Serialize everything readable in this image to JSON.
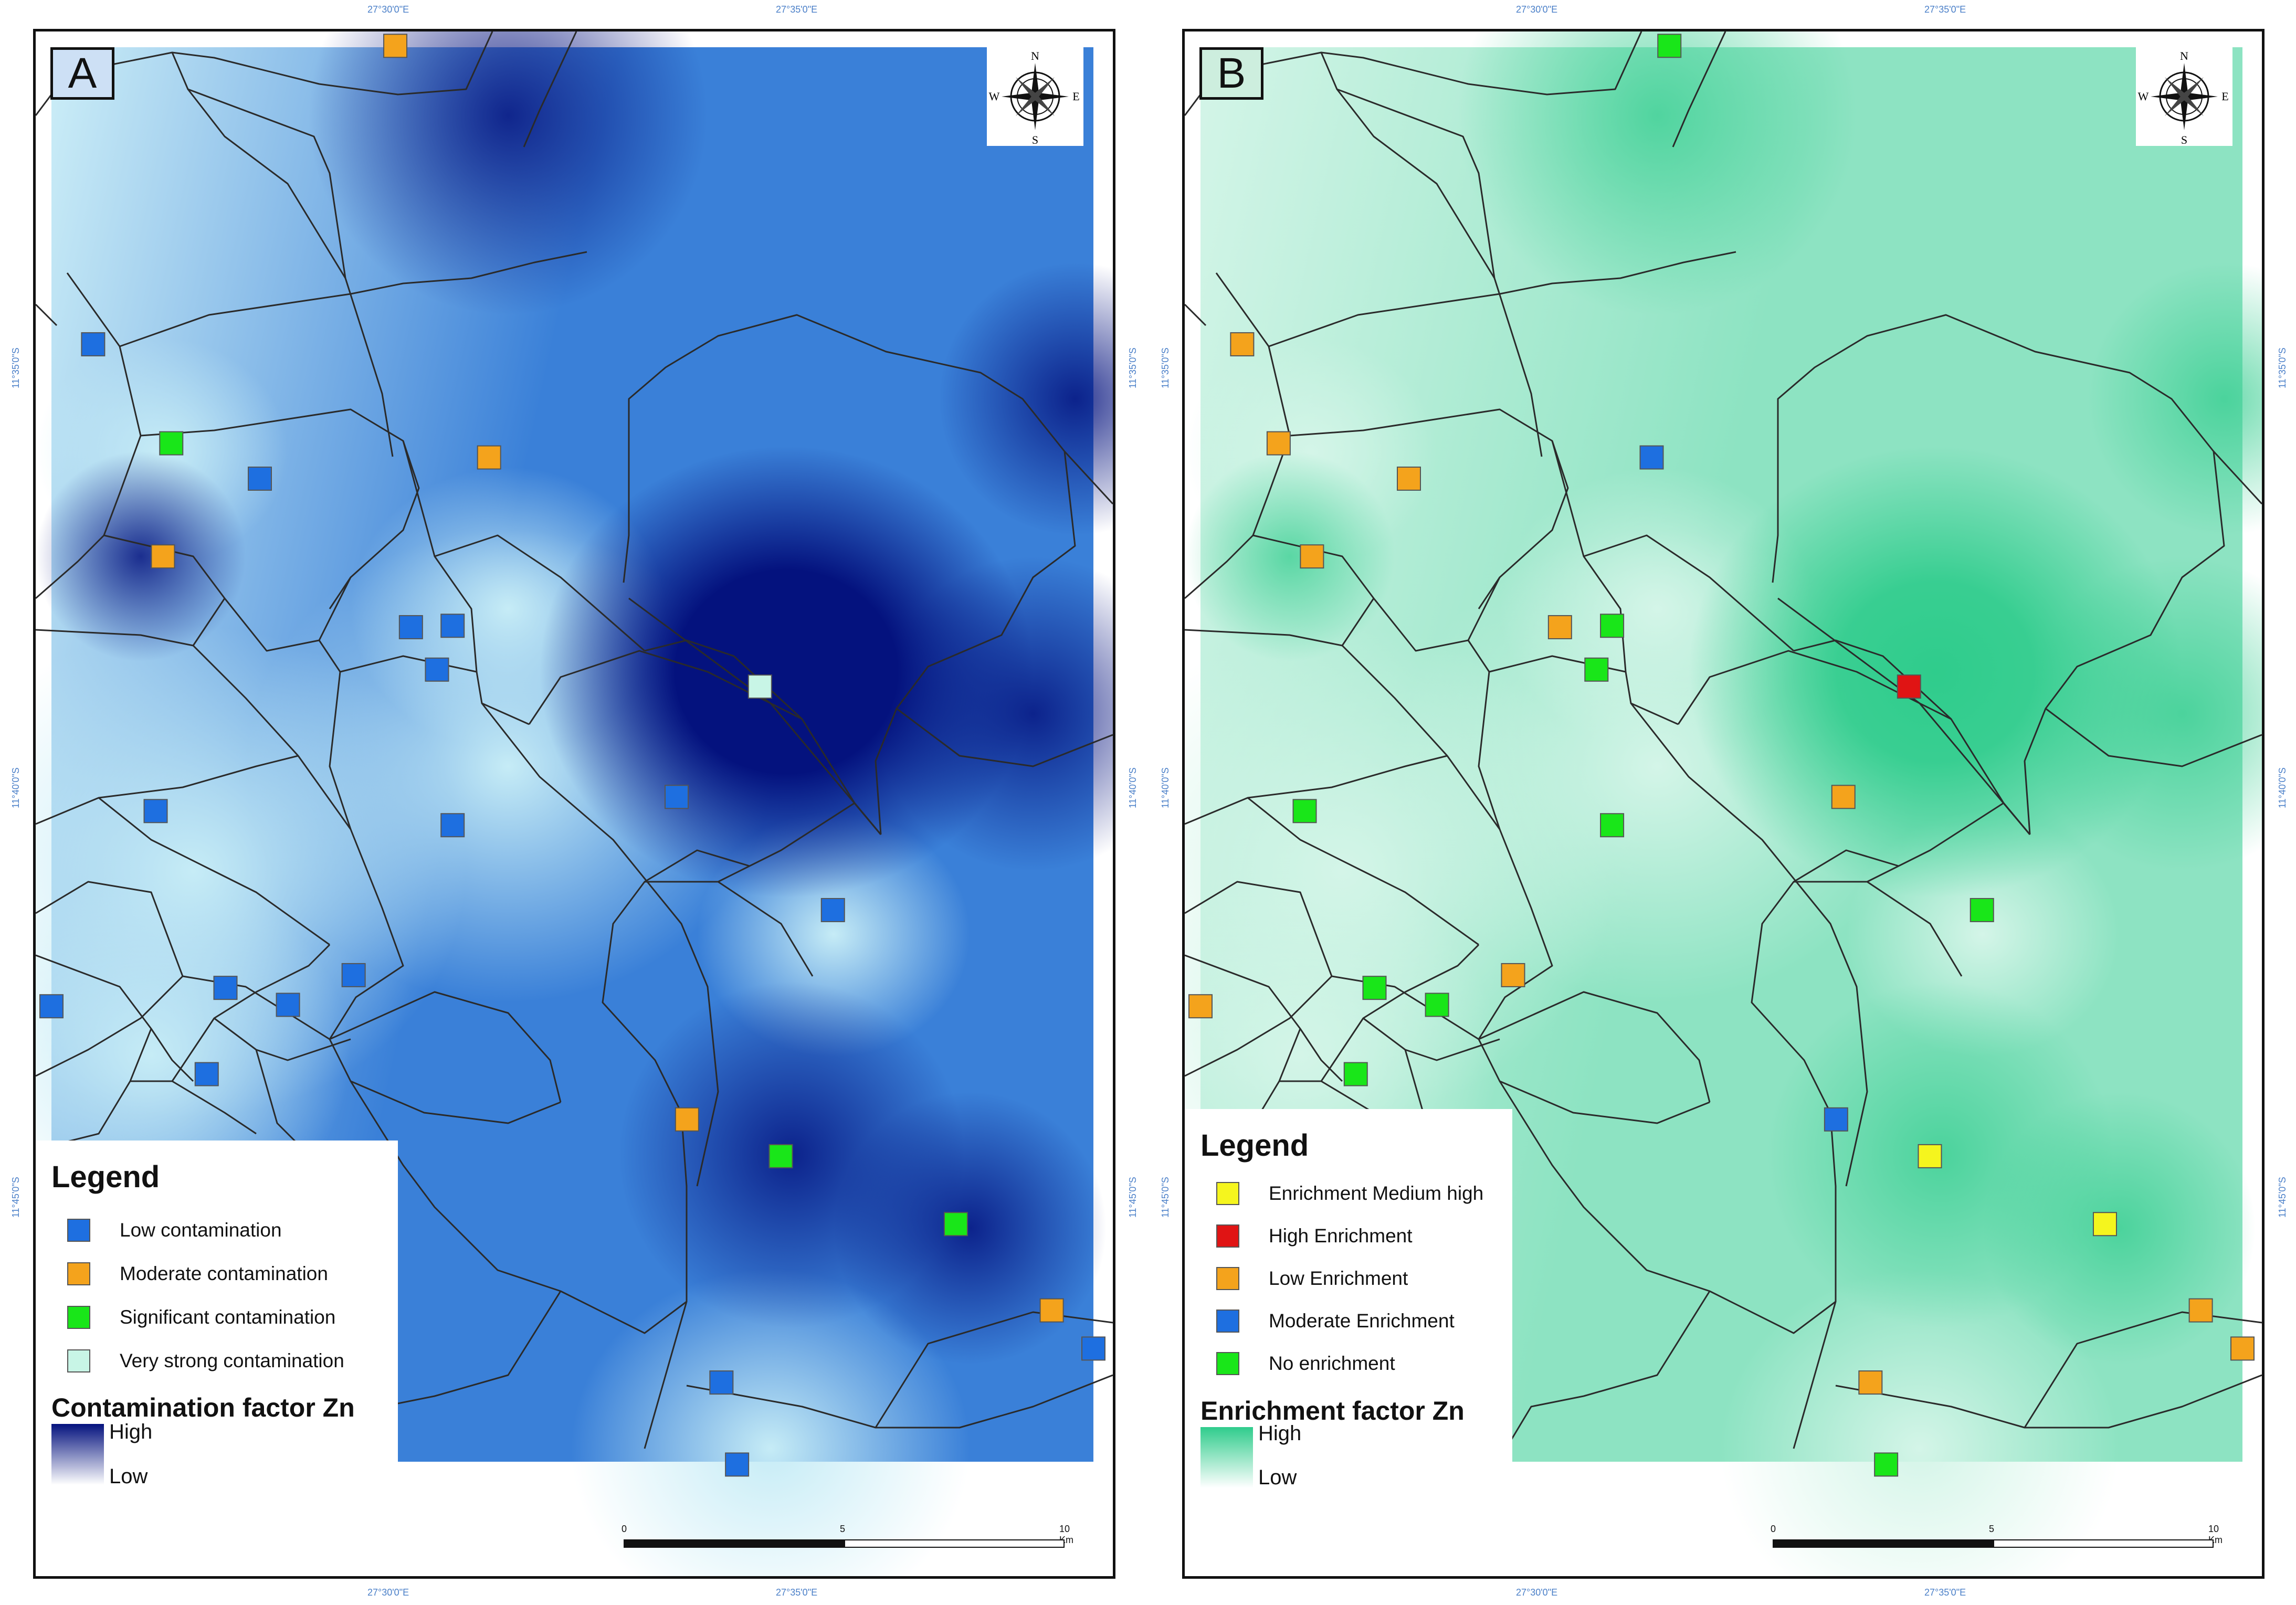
{
  "coordinates": {
    "lon": [
      "27°30'0\"E",
      "27°35'0\"E"
    ],
    "lat": [
      "11°35'0\"S",
      "11°40'0\"S",
      "11°45'0\"S"
    ]
  },
  "compass": {
    "n": "N",
    "s": "S",
    "e": "E",
    "w": "W"
  },
  "scalebar": {
    "ticks": [
      "0",
      "5",
      "10 Km"
    ]
  },
  "panels": [
    {
      "label": "A",
      "surface_colors": {
        "high": "#04127e",
        "mid": "#3a80d8",
        "low": "#c6ecf6"
      },
      "legend": {
        "title": "Legend",
        "items": [
          {
            "label": "Low contamination",
            "color": "#1e6fe0"
          },
          {
            "label": "Moderate contamination",
            "color": "#f4a31c"
          },
          {
            "label": "Significant contamination",
            "color": "#19e619"
          },
          {
            "label": "Very strong contamination",
            "color": "#c8f5e6"
          }
        ],
        "ramp_title": "Contamination factor Zn",
        "ramp_high": "High",
        "ramp_low": "Low",
        "ramp_colors": [
          "#04127e",
          "#ffffff"
        ]
      },
      "samples": [
        {
          "cls": 0,
          "lx": 0.04,
          "ly": 0.21
        },
        {
          "cls": 2,
          "lx": 0.115,
          "ly": 0.28
        },
        {
          "cls": 0,
          "lx": 0.2,
          "ly": 0.305
        },
        {
          "cls": 1,
          "lx": 0.107,
          "ly": 0.36
        },
        {
          "cls": 1,
          "lx": 0.33,
          "ly": -0.001
        },
        {
          "cls": 1,
          "lx": 0.42,
          "ly": 0.29
        },
        {
          "cls": 0,
          "lx": 0.345,
          "ly": 0.41
        },
        {
          "cls": 0,
          "lx": 0.385,
          "ly": 0.409
        },
        {
          "cls": 0,
          "lx": 0.37,
          "ly": 0.44
        },
        {
          "cls": 0,
          "lx": 0.1,
          "ly": 0.54
        },
        {
          "cls": 0,
          "lx": 0.385,
          "ly": 0.55
        },
        {
          "cls": 0,
          "lx": 0.6,
          "ly": 0.53
        },
        {
          "cls": 3,
          "lx": 0.68,
          "ly": 0.452
        },
        {
          "cls": 0,
          "lx": 0.75,
          "ly": 0.61
        },
        {
          "cls": 0,
          "lx": 0.29,
          "ly": 0.656
        },
        {
          "cls": 0,
          "lx": 0.167,
          "ly": 0.665
        },
        {
          "cls": 0,
          "lx": 0.227,
          "ly": 0.677
        },
        {
          "cls": 0,
          "lx": 0.0,
          "ly": 0.678
        },
        {
          "cls": 0,
          "lx": 0.149,
          "ly": 0.726
        },
        {
          "cls": 1,
          "lx": 0.61,
          "ly": 0.758
        },
        {
          "cls": 2,
          "lx": 0.7,
          "ly": 0.784
        },
        {
          "cls": 2,
          "lx": 0.868,
          "ly": 0.832
        },
        {
          "cls": 1,
          "lx": 0.96,
          "ly": 0.893
        },
        {
          "cls": 0,
          "lx": 0.643,
          "ly": 0.944
        },
        {
          "cls": 0,
          "lx": 0.658,
          "ly": 1.002
        },
        {
          "cls": 0,
          "lx": 1.0,
          "ly": 0.92
        }
      ]
    },
    {
      "label": "B",
      "surface_colors": {
        "high": "#2fcc8c",
        "mid": "#8de3c2",
        "low": "#d4f5e8"
      },
      "legend": {
        "title": "Legend",
        "items": [
          {
            "label": "Enrichment Medium high",
            "color": "#f5f51e"
          },
          {
            "label": "High Enrichment",
            "color": "#e01414"
          },
          {
            "label": "Low Enrichment",
            "color": "#f4a31c"
          },
          {
            "label": "Moderate Enrichment",
            "color": "#1e6fe0"
          },
          {
            "label": "No enrichment",
            "color": "#19e619"
          }
        ],
        "ramp_title": "Enrichment factor Zn",
        "ramp_high": "High",
        "ramp_low": "Low",
        "ramp_colors": [
          "#2fcc8c",
          "#ffffff"
        ]
      },
      "samples": [
        {
          "cls": 2,
          "lx": 0.04,
          "ly": 0.21
        },
        {
          "cls": 2,
          "lx": 0.075,
          "ly": 0.28
        },
        {
          "cls": 2,
          "lx": 0.2,
          "ly": 0.305
        },
        {
          "cls": 2,
          "lx": 0.107,
          "ly": 0.36
        },
        {
          "cls": 4,
          "lx": 0.45,
          "ly": -0.001
        },
        {
          "cls": 3,
          "lx": 0.433,
          "ly": 0.29
        },
        {
          "cls": 2,
          "lx": 0.345,
          "ly": 0.41
        },
        {
          "cls": 4,
          "lx": 0.395,
          "ly": 0.409
        },
        {
          "cls": 4,
          "lx": 0.38,
          "ly": 0.44
        },
        {
          "cls": 4,
          "lx": 0.1,
          "ly": 0.54
        },
        {
          "cls": 4,
          "lx": 0.395,
          "ly": 0.55
        },
        {
          "cls": 2,
          "lx": 0.617,
          "ly": 0.53
        },
        {
          "cls": 1,
          "lx": 0.68,
          "ly": 0.452
        },
        {
          "cls": 4,
          "lx": 0.75,
          "ly": 0.61
        },
        {
          "cls": 2,
          "lx": 0.3,
          "ly": 0.656
        },
        {
          "cls": 4,
          "lx": 0.167,
          "ly": 0.665
        },
        {
          "cls": 4,
          "lx": 0.227,
          "ly": 0.677
        },
        {
          "cls": 2,
          "lx": 0.0,
          "ly": 0.678
        },
        {
          "cls": 4,
          "lx": 0.149,
          "ly": 0.726
        },
        {
          "cls": 3,
          "lx": 0.61,
          "ly": 0.758
        },
        {
          "cls": 0,
          "lx": 0.7,
          "ly": 0.784
        },
        {
          "cls": 0,
          "lx": 0.868,
          "ly": 0.832
        },
        {
          "cls": 2,
          "lx": 0.96,
          "ly": 0.893
        },
        {
          "cls": 2,
          "lx": 0.643,
          "ly": 0.944
        },
        {
          "cls": 4,
          "lx": 0.658,
          "ly": 1.002
        },
        {
          "cls": 2,
          "lx": 1.0,
          "ly": 0.92
        }
      ]
    }
  ]
}
